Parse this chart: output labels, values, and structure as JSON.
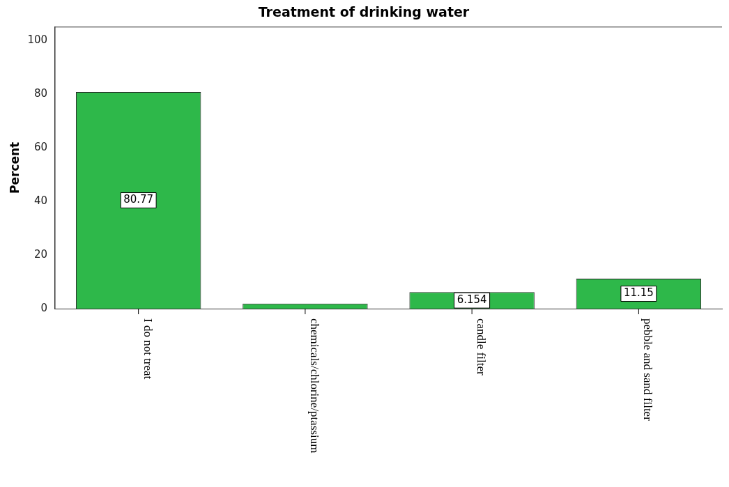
{
  "chart_data": {
    "type": "bar",
    "title": "Treatment of drinking water",
    "ylabel": "Percent",
    "categories": [
      "I do not treat",
      "chemicals/chlorine/ptassium",
      "candle filter",
      "pebble and sand filter"
    ],
    "values": [
      80.77,
      1.9,
      6.154,
      11.15
    ],
    "value_labels": [
      "80.77",
      null,
      "6.154",
      "11.15"
    ],
    "color": "#2eb84a",
    "ylim": [
      0,
      105
    ],
    "yticks": [
      0,
      20,
      40,
      60,
      80,
      100
    ],
    "grid": false,
    "legend": false
  }
}
